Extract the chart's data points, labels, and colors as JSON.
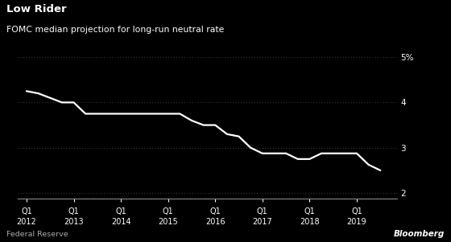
{
  "title": "Low Rider",
  "subtitle": "FOMC median projection for long-run neutral rate",
  "footnote": "Federal Reserve",
  "watermark": "Bloomberg",
  "background_color": "#000000",
  "text_color": "#ffffff",
  "line_color": "#ffffff",
  "grid_color": "#555555",
  "axis_color": "#888888",
  "ylim": [
    1.88,
    5.3
  ],
  "yticks": [
    2,
    3,
    4,
    5
  ],
  "ytick_labels": [
    "2",
    "3",
    "4",
    "5%"
  ],
  "x_data": [
    2012.0,
    2012.25,
    2012.5,
    2012.75,
    2013.0,
    2013.25,
    2013.5,
    2013.75,
    2014.0,
    2014.25,
    2014.5,
    2014.75,
    2015.0,
    2015.25,
    2015.5,
    2015.75,
    2016.0,
    2016.25,
    2016.5,
    2016.75,
    2017.0,
    2017.25,
    2017.5,
    2017.75,
    2018.0,
    2018.25,
    2018.5,
    2018.75,
    2019.0,
    2019.25,
    2019.5
  ],
  "y_data": [
    4.25,
    4.2,
    4.1,
    4.0,
    4.0,
    3.75,
    3.75,
    3.75,
    3.75,
    3.75,
    3.75,
    3.75,
    3.75,
    3.75,
    3.6,
    3.5,
    3.5,
    3.3,
    3.25,
    3.0,
    2.875,
    2.875,
    2.875,
    2.75,
    2.75,
    2.875,
    2.875,
    2.875,
    2.875,
    2.625,
    2.5
  ],
  "xlim": [
    2011.82,
    2019.85
  ],
  "xtick_positions": [
    2012.0,
    2013.0,
    2014.0,
    2015.0,
    2016.0,
    2017.0,
    2018.0,
    2019.0
  ],
  "xtick_labels_line1": [
    "Q1",
    "Q1",
    "Q1",
    "Q1",
    "Q1",
    "Q1",
    "Q1",
    "Q1"
  ],
  "xtick_labels_line2": [
    "2012",
    "2013",
    "2014",
    "2015",
    "2016",
    "2017",
    "2018",
    "2019"
  ]
}
